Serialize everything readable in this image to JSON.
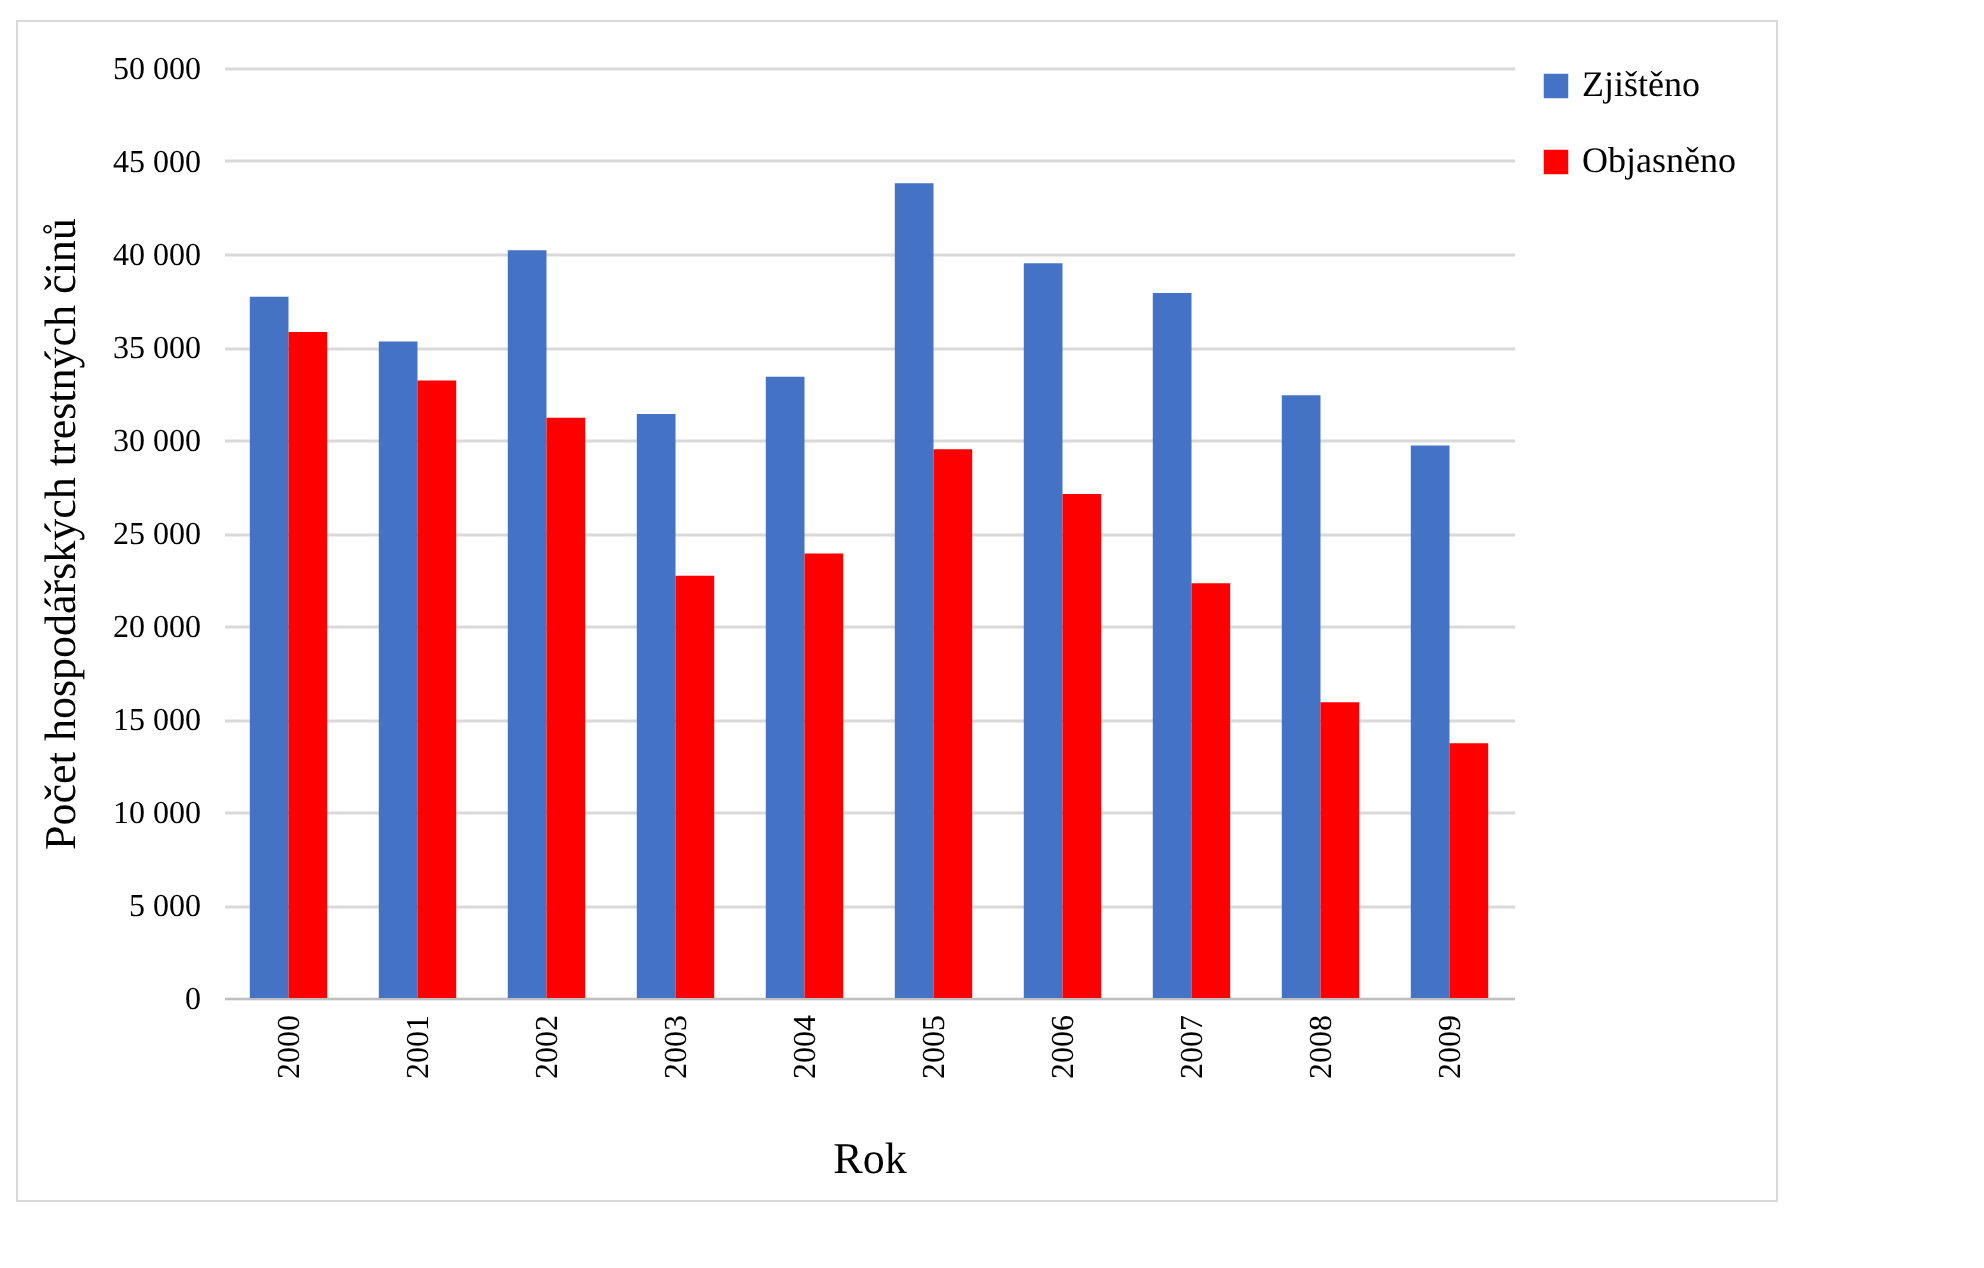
{
  "chart_data": {
    "type": "bar",
    "xlabel": "Rok",
    "ylabel": "Počet hospodářských  trestných činů",
    "categories": [
      "2000",
      "2001",
      "2002",
      "2003",
      "2004",
      "2005",
      "2006",
      "2007",
      "2008",
      "2009"
    ],
    "series": [
      {
        "name": "Zjištěno",
        "color": "#4472c4",
        "values": [
          37700,
          35300,
          40200,
          31400,
          33400,
          43800,
          39500,
          37900,
          32400,
          29700
        ]
      },
      {
        "name": "Objasněno",
        "color": "#ff0000",
        "values": [
          35800,
          33200,
          31200,
          22700,
          23900,
          29500,
          27100,
          22300,
          15900,
          13700
        ]
      }
    ],
    "ylim": [
      0,
      50000
    ],
    "yticks": [
      {
        "value": 0,
        "label": "0"
      },
      {
        "value": 5000,
        "label": "5 000"
      },
      {
        "value": 10000,
        "label": "10 000"
      },
      {
        "value": 15000,
        "label": "15 000"
      },
      {
        "value": 20000,
        "label": "20 000"
      },
      {
        "value": 25000,
        "label": "25 000"
      },
      {
        "value": 30000,
        "label": "30 000"
      },
      {
        "value": 35000,
        "label": "35 000"
      },
      {
        "value": 40000,
        "label": "40 000"
      },
      {
        "value": 45000,
        "label": "45 000"
      },
      {
        "value": 50000,
        "label": "50 000"
      }
    ],
    "grid": "y",
    "legend": "right"
  }
}
